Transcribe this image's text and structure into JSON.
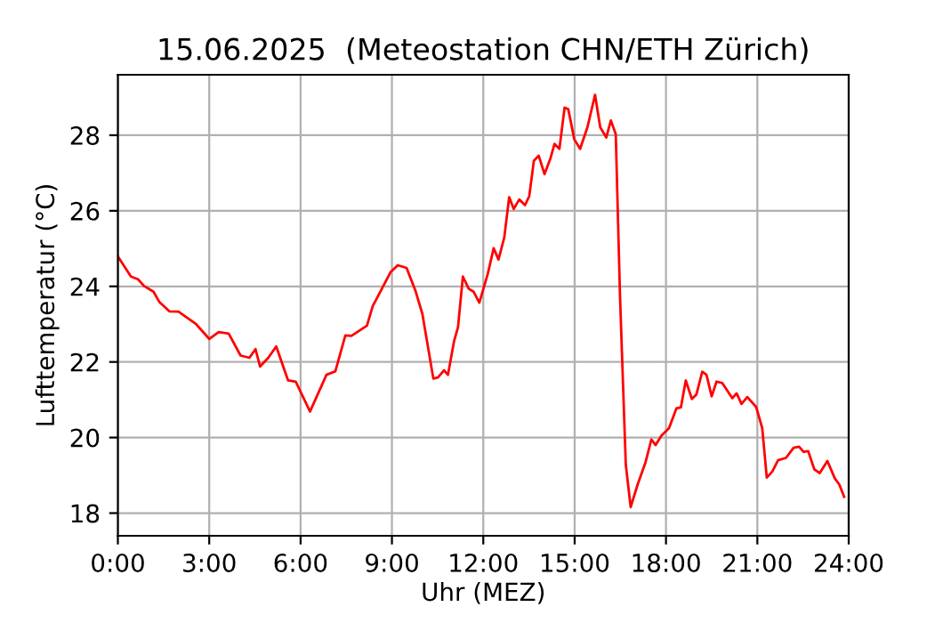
{
  "chart_data": {
    "type": "line",
    "title": "15.06.2025  (Meteostation CHN/ETH Zürich)",
    "xlabel": "Uhr (MEZ)",
    "ylabel": "Lufttemperatur (°C)",
    "series": [
      {
        "color": "#ff0000",
        "x": [
          0.0,
          0.04,
          0.43,
          0.66,
          0.86,
          1.17,
          1.36,
          1.69,
          1.99,
          2.57,
          3.0,
          3.31,
          3.64,
          4.03,
          4.32,
          4.52,
          4.67,
          4.94,
          5.2,
          5.59,
          5.84,
          6.31,
          6.85,
          7.14,
          7.47,
          7.67,
          8.18,
          8.37,
          8.64,
          8.95,
          9.19,
          9.48,
          9.77,
          10.0,
          10.36,
          10.51,
          10.71,
          10.84,
          11.04,
          11.17,
          11.33,
          11.52,
          11.68,
          11.87,
          12.15,
          12.34,
          12.5,
          12.69,
          12.85,
          13.0,
          13.18,
          13.37,
          13.51,
          13.66,
          13.82,
          14.01,
          14.21,
          14.34,
          14.5,
          14.67,
          14.79,
          14.99,
          15.18,
          15.42,
          15.67,
          15.84,
          16.04,
          16.19,
          16.35,
          16.49,
          16.68,
          16.84,
          17.07,
          17.33,
          17.52,
          17.66,
          17.85,
          18.1,
          18.34,
          18.49,
          18.65,
          18.85,
          19.0,
          19.19,
          19.33,
          19.5,
          19.66,
          19.85,
          20.18,
          20.32,
          20.48,
          20.67,
          20.96,
          21.16,
          21.31,
          21.49,
          21.68,
          21.94,
          22.19,
          22.37,
          22.52,
          22.67,
          22.87,
          23.05,
          23.3,
          23.55,
          23.69,
          23.85
        ],
        "values": [
          24.8,
          24.74,
          24.26,
          24.19,
          24.01,
          23.86,
          23.59,
          23.34,
          23.33,
          23.0,
          22.61,
          22.79,
          22.75,
          22.17,
          22.11,
          22.34,
          21.88,
          22.11,
          22.41,
          21.51,
          21.48,
          20.69,
          21.66,
          21.75,
          22.7,
          22.69,
          22.96,
          23.48,
          23.89,
          24.37,
          24.56,
          24.49,
          23.89,
          23.27,
          21.56,
          21.59,
          21.78,
          21.66,
          22.55,
          22.92,
          24.26,
          23.94,
          23.86,
          23.57,
          24.34,
          25.01,
          24.71,
          25.3,
          26.36,
          26.05,
          26.3,
          26.15,
          26.39,
          27.32,
          27.46,
          26.97,
          27.4,
          27.77,
          27.64,
          28.73,
          28.69,
          27.89,
          27.64,
          28.21,
          29.07,
          28.21,
          27.94,
          28.39,
          28.03,
          23.74,
          19.28,
          18.16,
          18.76,
          19.35,
          19.95,
          19.8,
          20.05,
          20.25,
          20.77,
          20.8,
          21.51,
          21.02,
          21.14,
          21.74,
          21.66,
          21.09,
          21.48,
          21.44,
          21.04,
          21.17,
          20.89,
          21.07,
          20.81,
          20.25,
          18.94,
          19.1,
          19.4,
          19.46,
          19.73,
          19.76,
          19.62,
          19.64,
          19.16,
          19.06,
          19.38,
          18.91,
          18.76,
          18.43
        ]
      }
    ],
    "xlim": [
      0,
      24
    ],
    "ylim": [
      17.4,
      29.6
    ],
    "xticks": [
      {
        "value": 0,
        "label": "0:00"
      },
      {
        "value": 3,
        "label": "3:00"
      },
      {
        "value": 6,
        "label": "6:00"
      },
      {
        "value": 9,
        "label": "9:00"
      },
      {
        "value": 12,
        "label": "12:00"
      },
      {
        "value": 15,
        "label": "15:00"
      },
      {
        "value": 18,
        "label": "18:00"
      },
      {
        "value": 21,
        "label": "21:00"
      },
      {
        "value": 24,
        "label": "24:00"
      }
    ],
    "yticks": [
      18,
      20,
      22,
      24,
      26,
      28
    ],
    "grid": true
  }
}
